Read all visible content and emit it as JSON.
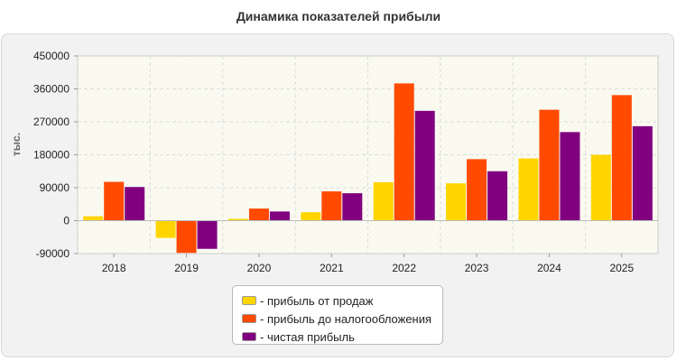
{
  "chart_data": {
    "type": "bar",
    "title": "Динамика показателей прибыли",
    "ylabel": "тыс.",
    "xlabel": "",
    "categories": [
      "2018",
      "2019",
      "2020",
      "2021",
      "2022",
      "2023",
      "2024",
      "2025"
    ],
    "ylim": [
      -90000,
      450000
    ],
    "yticks": [
      "-90000",
      "0",
      "90000",
      "180000",
      "270000",
      "360000",
      "450000"
    ],
    "grid": true,
    "legend_position": "bottom-center",
    "series": [
      {
        "name": "прибыль от продаж",
        "color": "#ffd500",
        "values": [
          12000,
          -47000,
          5000,
          23000,
          105000,
          102000,
          170000,
          180000
        ]
      },
      {
        "name": "прибыль до налогообложения",
        "color": "#ff4a00",
        "values": [
          106000,
          -88000,
          33000,
          80000,
          375000,
          168000,
          303000,
          343000
        ]
      },
      {
        "name": "чистая прибыль",
        "color": "#800080",
        "values": [
          92000,
          -77000,
          25000,
          75000,
          300000,
          135000,
          242000,
          258000
        ]
      }
    ]
  }
}
